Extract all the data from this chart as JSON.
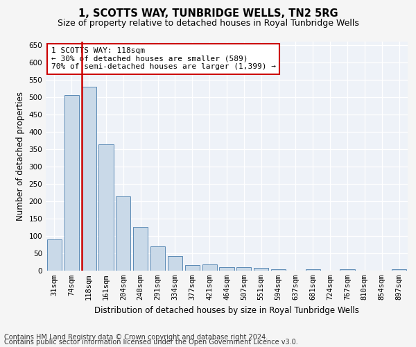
{
  "title": "1, SCOTTS WAY, TUNBRIDGE WELLS, TN2 5RG",
  "subtitle": "Size of property relative to detached houses in Royal Tunbridge Wells",
  "xlabel": "Distribution of detached houses by size in Royal Tunbridge Wells",
  "ylabel": "Number of detached properties",
  "footnote1": "Contains HM Land Registry data © Crown copyright and database right 2024.",
  "footnote2": "Contains public sector information licensed under the Open Government Licence v3.0.",
  "categories": [
    "31sqm",
    "74sqm",
    "118sqm",
    "161sqm",
    "204sqm",
    "248sqm",
    "291sqm",
    "334sqm",
    "377sqm",
    "421sqm",
    "464sqm",
    "507sqm",
    "551sqm",
    "594sqm",
    "637sqm",
    "681sqm",
    "724sqm",
    "767sqm",
    "810sqm",
    "854sqm",
    "897sqm"
  ],
  "values": [
    90,
    507,
    530,
    365,
    215,
    126,
    70,
    43,
    16,
    19,
    11,
    11,
    8,
    5,
    0,
    5,
    0,
    4,
    0,
    0,
    4
  ],
  "bar_color": "#c9d9e8",
  "bar_edge_color": "#5a8ab5",
  "highlight_bar_index": 2,
  "highlight_line_color": "#cc0000",
  "annotation_line1": "1 SCOTTS WAY: 118sqm",
  "annotation_line2": "← 30% of detached houses are smaller (589)",
  "annotation_line3": "70% of semi-detached houses are larger (1,399) →",
  "annotation_box_color": "#ffffff",
  "annotation_box_edge_color": "#cc0000",
  "ylim": [
    0,
    660
  ],
  "yticks": [
    0,
    50,
    100,
    150,
    200,
    250,
    300,
    350,
    400,
    450,
    500,
    550,
    600,
    650
  ],
  "bg_color": "#eef2f8",
  "grid_color": "#ffffff",
  "title_fontsize": 10.5,
  "subtitle_fontsize": 9,
  "axis_label_fontsize": 8.5,
  "tick_fontsize": 7.5,
  "annotation_fontsize": 8,
  "footnote_fontsize": 7
}
